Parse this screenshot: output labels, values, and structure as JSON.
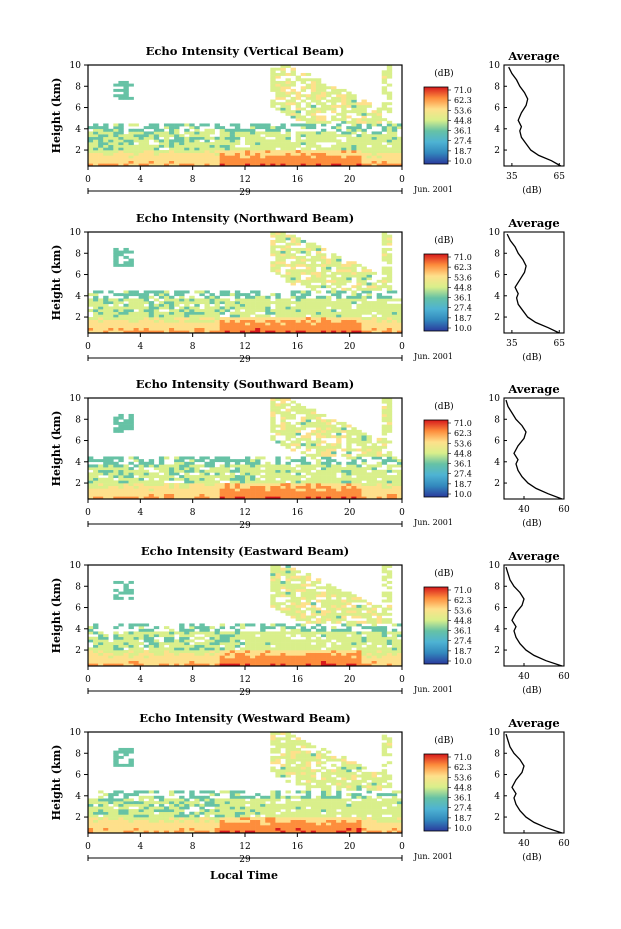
{
  "figure": {
    "x_axis_label": "Local Time",
    "y_axis_label": "Height (km)",
    "colorbar_unit": "(dB)",
    "colorbar_ticks": [
      "71.0",
      "62.3",
      "53.6",
      "44.8",
      "36.1",
      "27.4",
      "18.7",
      "10.0"
    ],
    "colorbar_colors": [
      "#d7191c",
      "#fd8d3c",
      "#fee08b",
      "#d9ef8b",
      "#66c2a5",
      "#4eb3d3",
      "#3288bd",
      "#2b3a9c"
    ],
    "date_label": "Jun. 2001",
    "date_day_under_axis": "29",
    "average_title": "Average",
    "average_unit": "(dB)"
  },
  "chart_data": [
    {
      "type": "heatmap",
      "title": "Echo Intensity (Vertical Beam)",
      "xlabel": "",
      "ylabel": "Height (km)",
      "x_ticks": [
        "0",
        "4",
        "8",
        "12",
        "16",
        "20",
        "0"
      ],
      "y_ticks": [
        "2",
        "4",
        "6",
        "8",
        "10"
      ],
      "xlim": [
        0,
        24
      ],
      "ylim": [
        0.5,
        10
      ],
      "colorbar": {
        "min": 10.0,
        "max": 71.0,
        "unit": "dB"
      },
      "average_profile": {
        "x_ticks": [
          "35",
          "65"
        ],
        "xlim": [
          30,
          68
        ],
        "points": [
          [
            66,
            0.5
          ],
          [
            60,
            1.0
          ],
          [
            52,
            1.5
          ],
          [
            47,
            2.0
          ],
          [
            44,
            2.6
          ],
          [
            41,
            3.2
          ],
          [
            40,
            3.8
          ],
          [
            41,
            4.2
          ],
          [
            39,
            4.8
          ],
          [
            41,
            5.5
          ],
          [
            44,
            6.2
          ],
          [
            45,
            6.8
          ],
          [
            43,
            7.4
          ],
          [
            40,
            8.0
          ],
          [
            38,
            8.6
          ],
          [
            35,
            9.2
          ],
          [
            33,
            9.8
          ]
        ]
      }
    },
    {
      "type": "heatmap",
      "title": "Echo Intensity (Northward Beam)",
      "xlabel": "",
      "ylabel": "Height (km)",
      "x_ticks": [
        "0",
        "4",
        "8",
        "12",
        "16",
        "20",
        "0"
      ],
      "y_ticks": [
        "2",
        "4",
        "6",
        "8",
        "10"
      ],
      "xlim": [
        0,
        24
      ],
      "ylim": [
        0.5,
        10
      ],
      "colorbar": {
        "min": 10.0,
        "max": 71.0,
        "unit": "dB"
      },
      "average_profile": {
        "x_ticks": [
          "35",
          "65"
        ],
        "xlim": [
          30,
          68
        ],
        "points": [
          [
            65,
            0.5
          ],
          [
            58,
            1.0
          ],
          [
            50,
            1.5
          ],
          [
            45,
            2.0
          ],
          [
            42,
            2.6
          ],
          [
            39,
            3.2
          ],
          [
            38,
            3.8
          ],
          [
            39,
            4.2
          ],
          [
            37,
            4.8
          ],
          [
            40,
            5.5
          ],
          [
            43,
            6.2
          ],
          [
            44,
            6.8
          ],
          [
            42,
            7.4
          ],
          [
            39,
            8.0
          ],
          [
            37,
            8.6
          ],
          [
            34,
            9.2
          ],
          [
            32,
            9.8
          ]
        ]
      }
    },
    {
      "type": "heatmap",
      "title": "Echo Intensity (Southward Beam)",
      "xlabel": "",
      "ylabel": "Height (km)",
      "x_ticks": [
        "0",
        "4",
        "8",
        "12",
        "16",
        "20",
        "0"
      ],
      "y_ticks": [
        "2",
        "4",
        "6",
        "8",
        "10"
      ],
      "xlim": [
        0,
        24
      ],
      "ylim": [
        0.5,
        10
      ],
      "colorbar": {
        "min": 10.0,
        "max": 71.0,
        "unit": "dB"
      },
      "average_profile": {
        "x_ticks": [
          "40",
          "60"
        ],
        "xlim": [
          30,
          60
        ],
        "points": [
          [
            59,
            0.5
          ],
          [
            52,
            1.0
          ],
          [
            46,
            1.5
          ],
          [
            42,
            2.0
          ],
          [
            39,
            2.6
          ],
          [
            37,
            3.2
          ],
          [
            36,
            3.8
          ],
          [
            37,
            4.2
          ],
          [
            35,
            4.8
          ],
          [
            37,
            5.5
          ],
          [
            40,
            6.2
          ],
          [
            41,
            6.8
          ],
          [
            39,
            7.4
          ],
          [
            36,
            8.0
          ],
          [
            34,
            8.6
          ],
          [
            32,
            9.2
          ],
          [
            31,
            9.8
          ]
        ]
      }
    },
    {
      "type": "heatmap",
      "title": "Echo Intensity (Eastward Beam)",
      "xlabel": "",
      "ylabel": "Height (km)",
      "x_ticks": [
        "0",
        "4",
        "8",
        "12",
        "16",
        "20",
        "0"
      ],
      "y_ticks": [
        "2",
        "4",
        "6",
        "8",
        "10"
      ],
      "xlim": [
        0,
        24
      ],
      "ylim": [
        0.5,
        10
      ],
      "colorbar": {
        "min": 10.0,
        "max": 71.0,
        "unit": "dB"
      },
      "average_profile": {
        "x_ticks": [
          "40",
          "60"
        ],
        "xlim": [
          30,
          60
        ],
        "points": [
          [
            59,
            0.5
          ],
          [
            51,
            1.0
          ],
          [
            45,
            1.5
          ],
          [
            41,
            2.0
          ],
          [
            38,
            2.6
          ],
          [
            36,
            3.2
          ],
          [
            35,
            3.8
          ],
          [
            36,
            4.2
          ],
          [
            34,
            4.8
          ],
          [
            36,
            5.5
          ],
          [
            39,
            6.2
          ],
          [
            40,
            6.8
          ],
          [
            38,
            7.4
          ],
          [
            35,
            8.0
          ],
          [
            33,
            8.6
          ],
          [
            32,
            9.2
          ],
          [
            31,
            9.8
          ]
        ]
      }
    },
    {
      "type": "heatmap",
      "title": "Echo Intensity (Westward Beam)",
      "xlabel": "Local Time",
      "ylabel": "Height (km)",
      "x_ticks": [
        "0",
        "4",
        "8",
        "12",
        "16",
        "20",
        "0"
      ],
      "y_ticks": [
        "2",
        "4",
        "6",
        "8",
        "10"
      ],
      "xlim": [
        0,
        24
      ],
      "ylim": [
        0.5,
        10
      ],
      "colorbar": {
        "min": 10.0,
        "max": 71.0,
        "unit": "dB"
      },
      "average_profile": {
        "x_ticks": [
          "40",
          "60"
        ],
        "xlim": [
          30,
          60
        ],
        "points": [
          [
            59,
            0.5
          ],
          [
            51,
            1.0
          ],
          [
            45,
            1.5
          ],
          [
            41,
            2.0
          ],
          [
            38,
            2.6
          ],
          [
            36,
            3.2
          ],
          [
            35,
            3.8
          ],
          [
            36,
            4.2
          ],
          [
            34,
            4.8
          ],
          [
            36,
            5.5
          ],
          [
            39,
            6.2
          ],
          [
            40,
            6.8
          ],
          [
            38,
            7.4
          ],
          [
            35,
            8.0
          ],
          [
            33,
            8.6
          ],
          [
            32,
            9.2
          ],
          [
            31,
            9.8
          ]
        ]
      }
    }
  ]
}
